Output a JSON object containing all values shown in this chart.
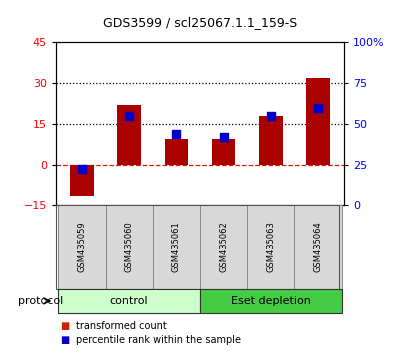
{
  "title": "GDS3599 / scl25067.1.1_159-S",
  "samples": [
    "GSM435059",
    "GSM435060",
    "GSM435061",
    "GSM435062",
    "GSM435063",
    "GSM435064"
  ],
  "transformed_count": [
    -11.5,
    22.0,
    9.5,
    9.5,
    18.0,
    32.0
  ],
  "percentile_rank": [
    22.0,
    55.0,
    44.0,
    42.0,
    55.0,
    60.0
  ],
  "bar_color": "#aa0000",
  "square_color": "#0000cc",
  "left_ylim": [
    -15,
    45
  ],
  "left_yticks": [
    -15,
    0,
    15,
    30,
    45
  ],
  "right_ylim": [
    0,
    100
  ],
  "right_yticks": [
    0,
    25,
    50,
    75,
    100
  ],
  "right_yticklabels": [
    "0",
    "25",
    "50",
    "75",
    "100%"
  ],
  "hline_zero_color": "#cc2200",
  "hline_dotted_values": [
    15,
    30
  ],
  "hline_dotted_color": "black",
  "groups": [
    {
      "label": "control",
      "samples": [
        0,
        1,
        2
      ],
      "color": "#ccffcc"
    },
    {
      "label": "Eset depletion",
      "samples": [
        3,
        4,
        5
      ],
      "color": "#44cc44"
    }
  ],
  "protocol_label": "protocol",
  "legend_items": [
    {
      "label": "transformed count",
      "color": "#cc2200"
    },
    {
      "label": "percentile rank within the sample",
      "color": "#0000cc"
    }
  ],
  "sample_box_color": "#d8d8d8",
  "plot_bg": "#ffffff"
}
